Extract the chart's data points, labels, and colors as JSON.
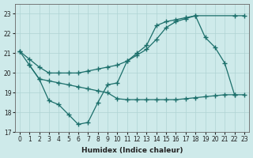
{
  "xlabel": "Humidex (Indice chaleur)",
  "bg_color": "#ceeaea",
  "grid_color": "#afd4d4",
  "line_color": "#1a6e6a",
  "line1_x": [
    0,
    1,
    2,
    3,
    4,
    5,
    6,
    7,
    8,
    9,
    10,
    11,
    12,
    13,
    14,
    15,
    16,
    17,
    18,
    19,
    20,
    21,
    22
  ],
  "line1_y": [
    21.1,
    20.4,
    19.7,
    18.6,
    18.4,
    17.9,
    17.4,
    17.5,
    18.5,
    19.4,
    19.5,
    20.6,
    21.0,
    21.4,
    22.4,
    22.6,
    22.7,
    22.8,
    22.9,
    21.8,
    21.3,
    20.5,
    18.9
  ],
  "line2_x": [
    0,
    1,
    2,
    3,
    4,
    5,
    6,
    7,
    8,
    9,
    10,
    11,
    12,
    13,
    14,
    15,
    16,
    17,
    18,
    22,
    23
  ],
  "line2_y": [
    21.1,
    20.7,
    20.3,
    20.0,
    20.0,
    20.0,
    20.0,
    20.1,
    20.2,
    20.3,
    20.4,
    20.6,
    20.9,
    21.2,
    21.7,
    22.3,
    22.6,
    22.75,
    22.9,
    22.9,
    22.9
  ],
  "line3_x": [
    1,
    2,
    3,
    4,
    5,
    6,
    7,
    8,
    9,
    10,
    11,
    12,
    13,
    14,
    15,
    16,
    17,
    18,
    19,
    20,
    21,
    22,
    23
  ],
  "line3_y": [
    20.4,
    19.7,
    19.6,
    19.5,
    19.4,
    19.3,
    19.2,
    19.1,
    19.0,
    18.7,
    18.65,
    18.65,
    18.65,
    18.65,
    18.65,
    18.65,
    18.7,
    18.75,
    18.8,
    18.85,
    18.9,
    18.9,
    18.9
  ],
  "ylim": [
    17.0,
    23.5
  ],
  "xlim": [
    -0.5,
    23.5
  ],
  "yticks": [
    17,
    18,
    19,
    20,
    21,
    22,
    23
  ],
  "xticks": [
    0,
    1,
    2,
    3,
    4,
    5,
    6,
    7,
    8,
    9,
    10,
    11,
    12,
    13,
    14,
    15,
    16,
    17,
    18,
    19,
    20,
    21,
    22,
    23
  ]
}
